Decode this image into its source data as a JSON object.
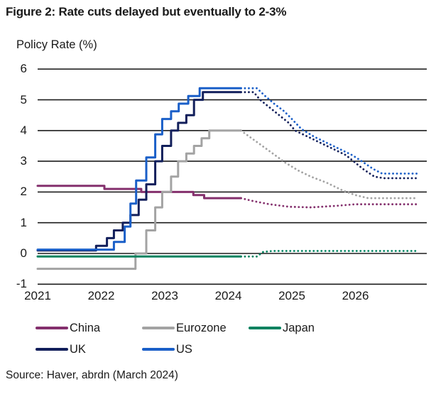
{
  "source": "Source: Haver, abrdn (March 2024)",
  "chart_data": {
    "type": "line",
    "title": "Figure 2: Rate cuts delayed but eventually to 2-3%",
    "ylabel": "Policy Rate (%)",
    "xlabel": "",
    "x_ticks": [
      2021,
      2022,
      2023,
      2024,
      2025,
      2026
    ],
    "y_ticks": [
      6,
      5,
      4,
      3,
      2,
      1,
      0,
      -1
    ],
    "xlim": [
      2021.0,
      2027.12
    ],
    "ylim": [
      -1,
      6
    ],
    "grid": true,
    "grid_color": "#1d1d1d",
    "legend_position": "bottom",
    "forecast_start_x": 2024.2,
    "style_note": "solid = history (step line), dotted = forecast",
    "series": [
      {
        "name": "China",
        "color": "#84306D",
        "solid": [
          [
            2021.0,
            2.2
          ],
          [
            2022.05,
            2.1
          ],
          [
            2022.63,
            2.0
          ],
          [
            2023.45,
            1.9
          ],
          [
            2023.62,
            1.8
          ],
          [
            2024.2,
            1.8
          ]
        ],
        "dotted": [
          [
            2024.2,
            1.8
          ],
          [
            2024.4,
            1.7
          ],
          [
            2024.65,
            1.6
          ],
          [
            2024.95,
            1.52
          ],
          [
            2025.3,
            1.5
          ],
          [
            2025.7,
            1.55
          ],
          [
            2026.0,
            1.6
          ],
          [
            2026.98,
            1.6
          ]
        ]
      },
      {
        "name": "Eurozone",
        "color": "#A3A3A3",
        "solid": [
          [
            2021.0,
            -0.5
          ],
          [
            2022.54,
            0.0
          ],
          [
            2022.71,
            0.75
          ],
          [
            2022.85,
            1.5
          ],
          [
            2022.96,
            2.0
          ],
          [
            2023.1,
            2.5
          ],
          [
            2023.21,
            3.0
          ],
          [
            2023.34,
            3.25
          ],
          [
            2023.46,
            3.5
          ],
          [
            2023.58,
            3.75
          ],
          [
            2023.7,
            4.0
          ],
          [
            2024.2,
            4.0
          ]
        ],
        "dotted": [
          [
            2024.2,
            4.0
          ],
          [
            2024.3,
            3.85
          ],
          [
            2024.5,
            3.55
          ],
          [
            2024.7,
            3.25
          ],
          [
            2024.9,
            2.95
          ],
          [
            2025.1,
            2.7
          ],
          [
            2025.3,
            2.5
          ],
          [
            2025.55,
            2.3
          ],
          [
            2025.8,
            2.05
          ],
          [
            2026.0,
            1.9
          ],
          [
            2026.2,
            1.8
          ],
          [
            2026.98,
            1.8
          ]
        ]
      },
      {
        "name": "Japan",
        "color": "#00825F",
        "solid": [
          [
            2021.0,
            -0.1
          ],
          [
            2024.2,
            -0.1
          ]
        ],
        "dotted": [
          [
            2024.2,
            -0.1
          ],
          [
            2024.45,
            -0.1
          ],
          [
            2024.55,
            0.05
          ],
          [
            2024.7,
            0.08
          ],
          [
            2026.98,
            0.08
          ]
        ]
      },
      {
        "name": "UK",
        "color": "#121F5B",
        "solid": [
          [
            2021.0,
            0.1
          ],
          [
            2021.92,
            0.25
          ],
          [
            2022.09,
            0.5
          ],
          [
            2022.2,
            0.75
          ],
          [
            2022.34,
            1.0
          ],
          [
            2022.46,
            1.25
          ],
          [
            2022.59,
            1.75
          ],
          [
            2022.71,
            2.25
          ],
          [
            2022.85,
            3.0
          ],
          [
            2022.96,
            3.5
          ],
          [
            2023.1,
            4.0
          ],
          [
            2023.21,
            4.25
          ],
          [
            2023.34,
            4.5
          ],
          [
            2023.46,
            5.0
          ],
          [
            2023.6,
            5.25
          ],
          [
            2024.2,
            5.25
          ]
        ],
        "dotted": [
          [
            2024.2,
            5.25
          ],
          [
            2024.4,
            5.25
          ],
          [
            2024.5,
            5.0
          ],
          [
            2024.65,
            4.75
          ],
          [
            2024.8,
            4.5
          ],
          [
            2024.95,
            4.25
          ],
          [
            2025.05,
            4.0
          ],
          [
            2025.25,
            3.8
          ],
          [
            2025.45,
            3.6
          ],
          [
            2025.65,
            3.4
          ],
          [
            2025.85,
            3.2
          ],
          [
            2025.97,
            3.0
          ],
          [
            2026.12,
            2.75
          ],
          [
            2026.3,
            2.5
          ],
          [
            2026.45,
            2.45
          ],
          [
            2026.95,
            2.45
          ]
        ]
      },
      {
        "name": "US",
        "color": "#1A5FC8",
        "solid": [
          [
            2021.0,
            0.125
          ],
          [
            2022.2,
            0.375
          ],
          [
            2022.37,
            0.875
          ],
          [
            2022.46,
            1.625
          ],
          [
            2022.55,
            2.375
          ],
          [
            2022.71,
            3.125
          ],
          [
            2022.85,
            3.875
          ],
          [
            2022.96,
            4.375
          ],
          [
            2023.1,
            4.625
          ],
          [
            2023.22,
            4.875
          ],
          [
            2023.37,
            5.125
          ],
          [
            2023.55,
            5.375
          ],
          [
            2024.2,
            5.375
          ]
        ],
        "dotted": [
          [
            2024.2,
            5.375
          ],
          [
            2024.45,
            5.375
          ],
          [
            2024.58,
            5.125
          ],
          [
            2024.72,
            4.875
          ],
          [
            2024.88,
            4.625
          ],
          [
            2025.0,
            4.375
          ],
          [
            2025.15,
            4.05
          ],
          [
            2025.35,
            3.8
          ],
          [
            2025.55,
            3.6
          ],
          [
            2025.75,
            3.4
          ],
          [
            2025.95,
            3.2
          ],
          [
            2026.1,
            3.0
          ],
          [
            2026.28,
            2.75
          ],
          [
            2026.42,
            2.6
          ],
          [
            2026.98,
            2.6
          ]
        ]
      }
    ]
  }
}
